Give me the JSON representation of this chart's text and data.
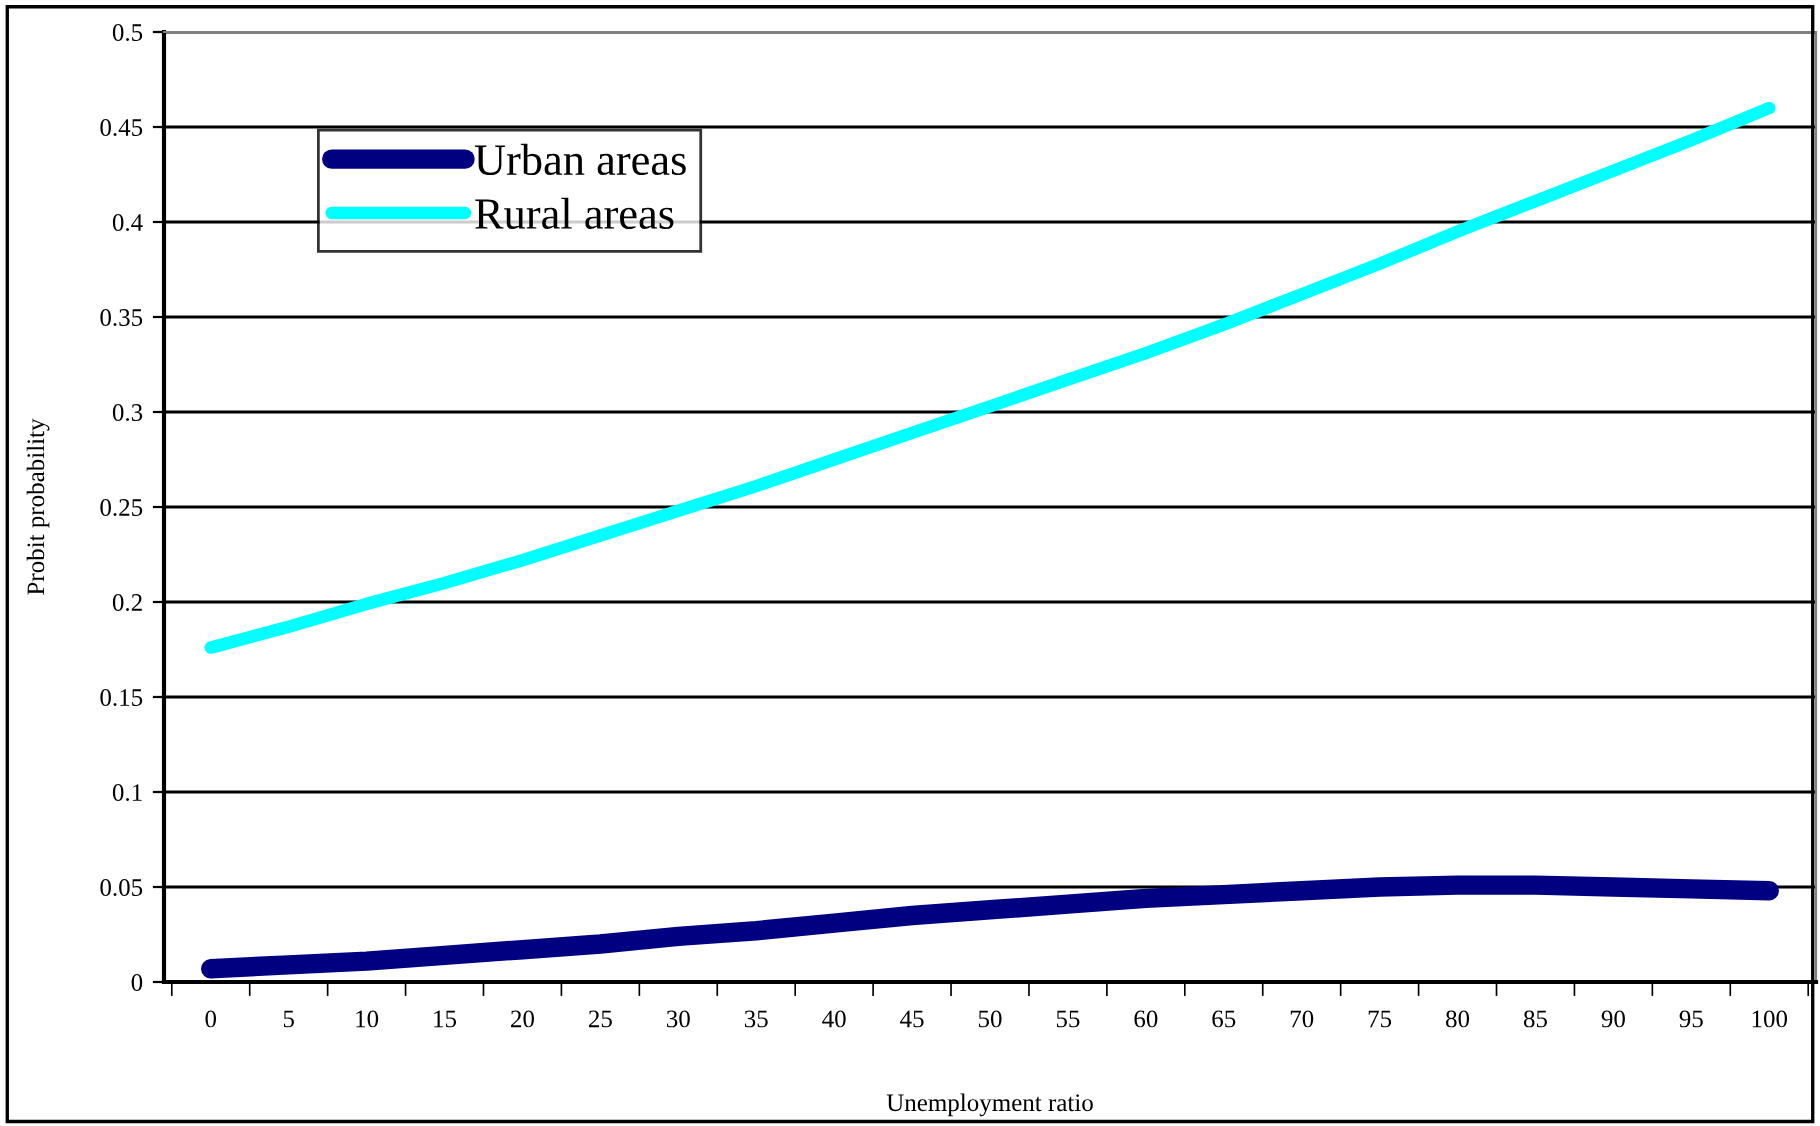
{
  "chart_data": {
    "type": "line",
    "xlabel": "Unemployment ratio",
    "ylabel": "Probit probability",
    "categories": [
      "0",
      "5",
      "10",
      "15",
      "20",
      "25",
      "30",
      "35",
      "40",
      "45",
      "50",
      "55",
      "60",
      "65",
      "70",
      "75",
      "80",
      "85",
      "90",
      "95",
      "100"
    ],
    "series": [
      {
        "name": "Urban areas",
        "color": "#000080",
        "values": [
          0.007,
          0.009,
          0.011,
          0.014,
          0.017,
          0.02,
          0.024,
          0.027,
          0.031,
          0.035,
          0.038,
          0.041,
          0.044,
          0.046,
          0.048,
          0.05,
          0.051,
          0.051,
          0.05,
          0.049,
          0.048
        ]
      },
      {
        "name": "Rural areas",
        "color": "#00ffff",
        "values": [
          0.176,
          0.187,
          0.199,
          0.21,
          0.222,
          0.235,
          0.248,
          0.261,
          0.275,
          0.289,
          0.303,
          0.317,
          0.331,
          0.346,
          0.362,
          0.378,
          0.395,
          0.411,
          0.427,
          0.443,
          0.46
        ]
      }
    ],
    "ylim": [
      0,
      0.5
    ],
    "yticks": [
      0,
      0.05,
      0.1,
      0.15,
      0.2,
      0.25,
      0.3,
      0.35,
      0.4,
      0.45,
      0.5
    ],
    "grid": "y",
    "legend": "top left",
    "marker": "none",
    "line_style": "solid"
  }
}
